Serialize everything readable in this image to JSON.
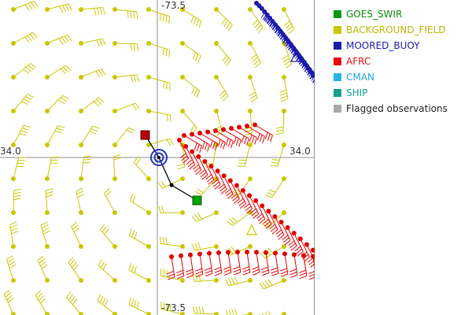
{
  "map": {
    "coord_labels": {
      "top": "-73.5",
      "bottom": "-73.5",
      "left": "34.0",
      "right": "34.0"
    },
    "colors": {
      "background_field": "#c8c800",
      "afrc": "#e00000",
      "moored_buoy": "#1a1aaa",
      "goes_swir": "#00a000",
      "track": "#000000",
      "storm_center": "#2233bb",
      "gridline": "#8c8c8c"
    }
  },
  "legend": {
    "items": [
      {
        "label": "GOES_SWIR",
        "color": "#0a9a0a",
        "text_color": "#0a8a0a"
      },
      {
        "label": "BACKGROUND_FIELD",
        "color": "#c8c800",
        "text_color": "#b8b800"
      },
      {
        "label": "MOORED_BUOY",
        "color": "#1a1aaa",
        "text_color": "#1a1aaa"
      },
      {
        "label": "AFRC",
        "color": "#e01010",
        "text_color": "#e01010"
      },
      {
        "label": "CMAN",
        "color": "#20b8e0",
        "text_color": "#20a8d8"
      },
      {
        "label": "SHIP",
        "color": "#12a090",
        "text_color": "#12a090"
      },
      {
        "label": "Flagged observations",
        "color": "#a8a8a8",
        "text_color": "#222222"
      }
    ]
  }
}
